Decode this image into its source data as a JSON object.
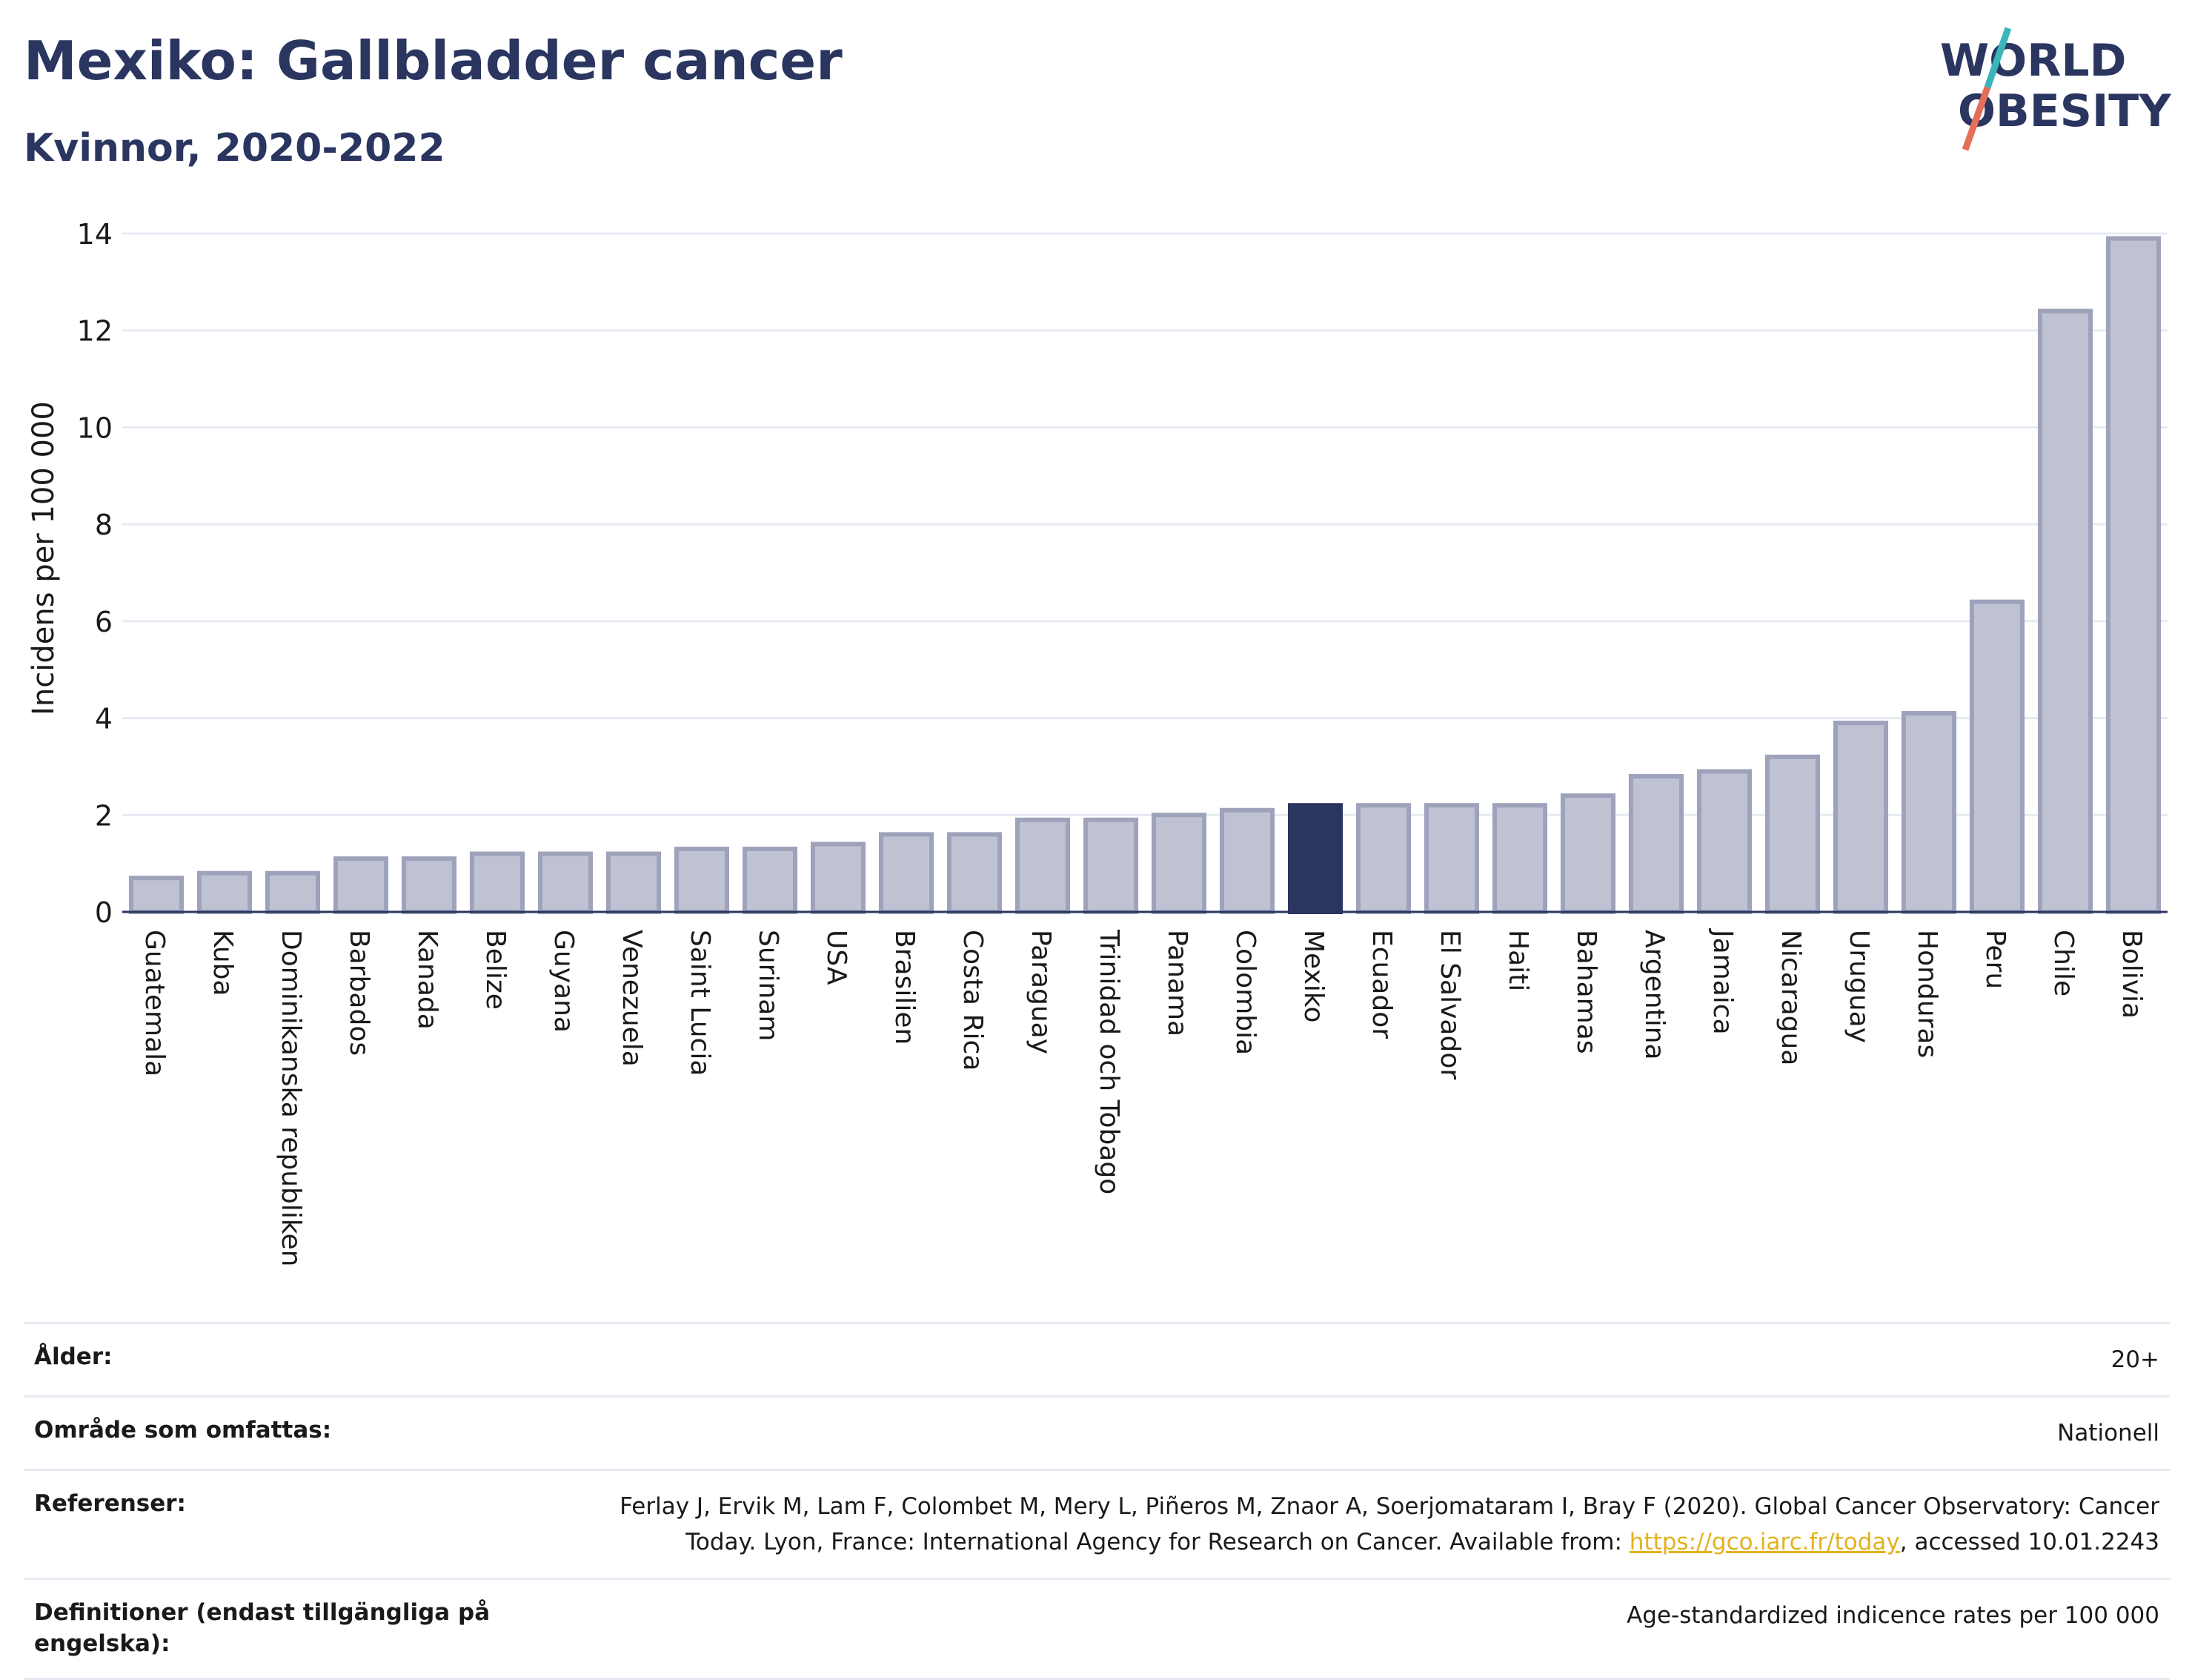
{
  "header": {
    "title": "Mexiko: Gallbladder cancer",
    "subtitle": "Kvinnor, 2020-2022"
  },
  "logo": {
    "line1": "WORLD",
    "line2": "OBESITY",
    "colors": {
      "text": "#2a3560",
      "slash_top": "#3bb5b9",
      "slash_bottom": "#e56e5a"
    }
  },
  "colors": {
    "bar_fill": "#bfc2d2",
    "bar_stroke": "#9ea2bb",
    "highlight": "#2a3560",
    "grid": "#e6ebf2",
    "axis": "#2a3560"
  },
  "chart_data": {
    "type": "bar",
    "title": "Mexiko: Gallbladder cancer",
    "subtitle": "Kvinnor, 2020-2022",
    "xlabel": "",
    "ylabel": "Incidens per 100 000",
    "ylim": [
      0,
      14
    ],
    "yticks": [
      0,
      2,
      4,
      6,
      8,
      10,
      12,
      14
    ],
    "grid": true,
    "highlight": "Mexiko",
    "categories": [
      "Guatemala",
      "Kuba",
      "Dominikanska republiken",
      "Barbados",
      "Kanada",
      "Belize",
      "Guyana",
      "Venezuela",
      "Saint Lucia",
      "Surinam",
      "USA",
      "Brasilien",
      "Costa Rica",
      "Paraguay",
      "Trinidad och Tobago",
      "Panama",
      "Colombia",
      "Mexiko",
      "Ecuador",
      "El Salvador",
      "Haiti",
      "Bahamas",
      "Argentina",
      "Jamaica",
      "Nicaragua",
      "Uruguay",
      "Honduras",
      "Peru",
      "Chile",
      "Bolivia"
    ],
    "values": [
      0.7,
      0.8,
      0.8,
      1.1,
      1.1,
      1.2,
      1.2,
      1.2,
      1.3,
      1.3,
      1.4,
      1.6,
      1.6,
      1.9,
      1.9,
      2.0,
      2.1,
      2.2,
      2.2,
      2.2,
      2.2,
      2.4,
      2.8,
      2.9,
      3.2,
      3.9,
      4.1,
      6.4,
      12.4,
      13.9
    ]
  },
  "footer": [
    {
      "label": "Ålder:",
      "value": "20+"
    },
    {
      "label": "Område som omfattas:",
      "value": "Nationell"
    },
    {
      "label": "Referenser:",
      "value_before": "Ferlay J, Ervik M, Lam F, Colombet M, Mery L, Piñeros M, Znaor A, Soerjomataram I, Bray F (2020). Global Cancer Observatory: Cancer Today. Lyon, France: International Agency for Research on Cancer. Available from: ",
      "link": "https://gco.iarc.fr/today",
      "value_after": ", accessed 10.01.2243"
    },
    {
      "label": "Definitioner (endast tillgängliga på engelska):",
      "value": "Age-standardized indicence rates per 100 000"
    }
  ]
}
